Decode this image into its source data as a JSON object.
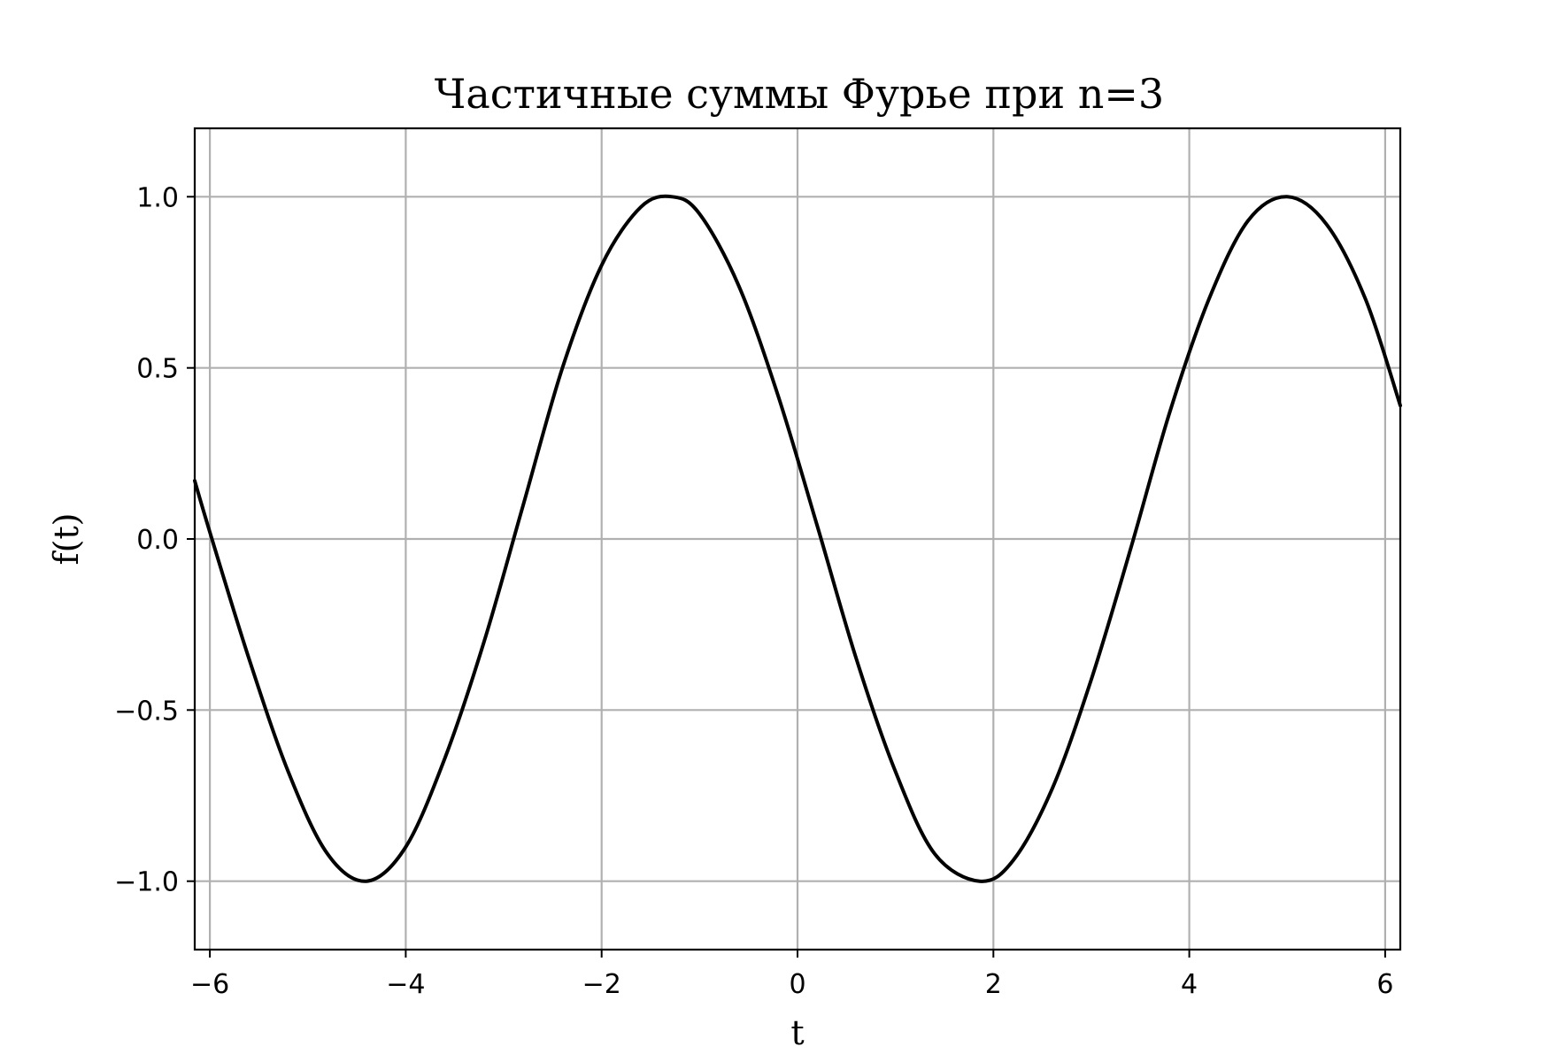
{
  "chart_data": {
    "type": "line",
    "title": "Частичные суммы Фурье при n=3",
    "xlabel": "t",
    "ylabel": "f(t)",
    "xlim": [
      -6.1544,
      6.1544
    ],
    "ylim": [
      -1.2,
      1.2
    ],
    "grid": true,
    "xticks": [
      -6,
      -4,
      -2,
      0,
      2,
      4,
      6
    ],
    "xtick_labels": [
      "−6",
      "−4",
      "−2",
      "0",
      "2",
      "4",
      "6"
    ],
    "yticks": [
      -1.0,
      -0.5,
      0.0,
      0.5,
      1.0
    ],
    "ytick_labels": [
      "−1.0",
      "−0.5",
      "0.0",
      "0.5",
      "1.0"
    ],
    "series": [
      {
        "color": "#000000",
        "x": [
          -6.1544,
          -6.0,
          -5.6,
          -5.2,
          -4.8,
          -4.4,
          -4.0,
          -3.6,
          -3.2,
          -2.8,
          -2.4,
          -2.0,
          -1.6,
          -1.28,
          -1.0,
          -0.6,
          -0.2,
          0.2,
          0.6,
          1.0,
          1.4,
          1.86,
          2.2,
          2.6,
          3.0,
          3.4,
          3.8,
          4.2,
          4.6,
          5.0,
          5.4,
          5.8,
          6.1544
        ],
        "y": [
          0.17,
          0.02,
          -0.35,
          -0.68,
          -0.92,
          -1.0,
          -0.9,
          -0.64,
          -0.3,
          0.1,
          0.5,
          0.8,
          0.97,
          1.0,
          0.95,
          0.74,
          0.42,
          0.04,
          -0.35,
          -0.68,
          -0.92,
          -1.0,
          -0.94,
          -0.73,
          -0.41,
          -0.03,
          0.37,
          0.7,
          0.93,
          1.0,
          0.92,
          0.7,
          0.39
        ]
      }
    ]
  }
}
